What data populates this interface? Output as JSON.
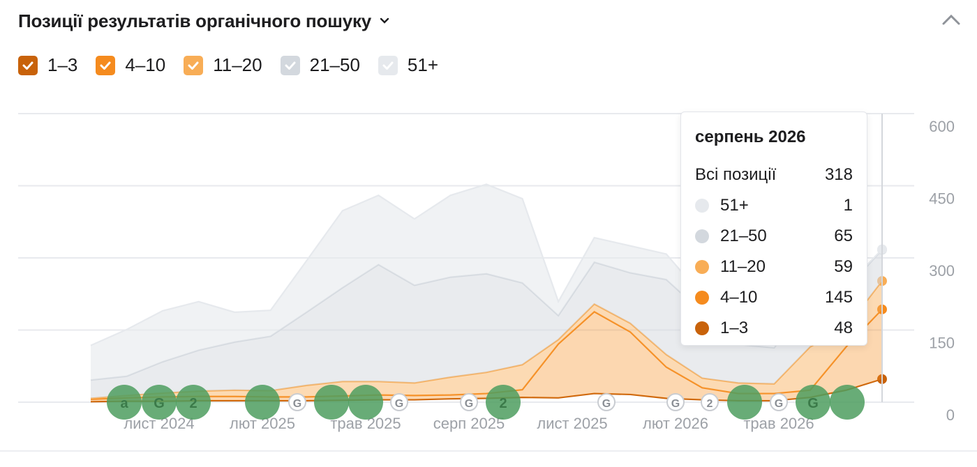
{
  "header": {
    "title": "Позиції результатів органічного пошуку"
  },
  "legend": [
    {
      "label": "1–3",
      "color": "#c8620a"
    },
    {
      "label": "4–10",
      "color": "#f58b1e"
    },
    {
      "label": "11–20",
      "color": "#f8ad56"
    },
    {
      "label": "21–50",
      "color": "#d3d8de"
    },
    {
      "label": "51+",
      "color": "#e6e9ed"
    }
  ],
  "tooltip": {
    "title": "серпень 2026",
    "total_label": "Всі позиції",
    "total_value": "318",
    "rows": [
      {
        "label": "51+",
        "value": "1",
        "color": "#e6e9ed"
      },
      {
        "label": "21–50",
        "value": "65",
        "color": "#d3d8de"
      },
      {
        "label": "11–20",
        "value": "59",
        "color": "#f8ad56"
      },
      {
        "label": "4–10",
        "value": "145",
        "color": "#f58b1e"
      },
      {
        "label": "1–3",
        "value": "48",
        "color": "#c8620a"
      }
    ]
  },
  "chart_data": {
    "type": "area",
    "x_ticks": [
      "лист 2024",
      "лют 2025",
      "трав 2025",
      "серп 2025",
      "лист 2025",
      "лют 2026",
      "трав 2026"
    ],
    "y_ticks": [
      "0",
      "150",
      "300",
      "450",
      "600"
    ],
    "ylim": [
      0,
      600
    ],
    "stacked": true,
    "series": [
      {
        "name": "1–3",
        "color": "#c8620a",
        "values": [
          1,
          2,
          2,
          3,
          3,
          3,
          3,
          4,
          5,
          5,
          7,
          8,
          10,
          9,
          18,
          16,
          8,
          5,
          3,
          3,
          10,
          25,
          48
        ]
      },
      {
        "name": "4–10",
        "color": "#f58b1e",
        "values": [
          5,
          7,
          9,
          9,
          9,
          8,
          8,
          9,
          10,
          9,
          8,
          10,
          16,
          112,
          170,
          130,
          65,
          25,
          15,
          15,
          15,
          90,
          145
        ]
      },
      {
        "name": "11–20",
        "color": "#f8ad56",
        "values": [
          2,
          5,
          8,
          11,
          13,
          13,
          24,
          30,
          28,
          26,
          37,
          44,
          52,
          9,
          16,
          18,
          26,
          20,
          22,
          20,
          90,
          40,
          59
        ]
      },
      {
        "name": "21–50",
        "color": "#d3d8de",
        "values": [
          38,
          40,
          65,
          85,
          100,
          113,
          152,
          195,
          243,
          203,
          208,
          205,
          170,
          50,
          87,
          105,
          156,
          137,
          80,
          75,
          100,
          80,
          65
        ]
      },
      {
        "name": "51+",
        "color": "#e6e9ed",
        "values": [
          72,
          97,
          106,
          101,
          62,
          54,
          107,
          160,
          144,
          138,
          170,
          186,
          175,
          29,
          51,
          56,
          53,
          34,
          25,
          25,
          18,
          5,
          1
        ]
      }
    ],
    "event_markers": [
      "a",
      "G",
      "2",
      "",
      "G",
      "",
      "",
      "G",
      "G",
      "2",
      "",
      "G",
      "G",
      "2",
      "",
      "G",
      "G",
      ""
    ]
  }
}
